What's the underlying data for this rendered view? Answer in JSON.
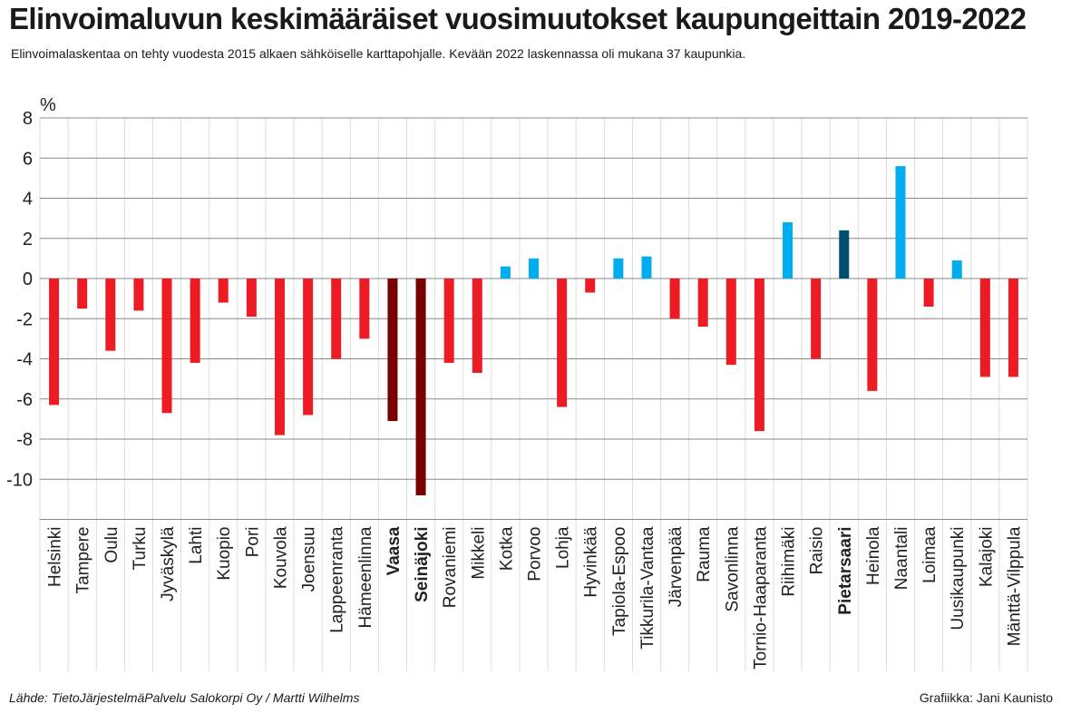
{
  "title": "Elinvoimaluvun keskimääräiset vuosimuutokset kaupungeittain 2019-2022",
  "subtitle": "Elinvoimalaskentaa on tehty vuodesta 2015 alkaen sähköiselle karttapohjalle. Kevään 2022 laskennassa oli mukana 37 kaupunkia.",
  "source": "Lähde: TietoJärjestelmäPalvelu Salokorpi Oy / Martti Wilhelms",
  "credit": "Grafiikka: Jani Kaunisto",
  "colors": {
    "negative": "#ed1c24",
    "positive": "#00aeef",
    "highlight_negative": "#7a0000",
    "highlight_positive": "#004f6e",
    "grid_major": "#888888",
    "grid_minor": "#dddddd"
  },
  "chart_data": {
    "type": "bar",
    "ylabel": "%",
    "ylim": [
      -12,
      8
    ],
    "yticks": [
      8,
      6,
      4,
      2,
      0,
      -2,
      -4,
      -6,
      -8,
      -10
    ],
    "grid": true,
    "categories": [
      "Helsinki",
      "Tampere",
      "Oulu",
      "Turku",
      "Jyväskylä",
      "Lahti",
      "Kuopio",
      "Pori",
      "Kouvola",
      "Joensuu",
      "Lappeenranta",
      "Hämeenlinna",
      "Vaasa",
      "Seinäjoki",
      "Rovaniemi",
      "Mikkeli",
      "Kotka",
      "Porvoo",
      "Lohja",
      "Hyvinkää",
      "Tapiola-Espoo",
      "Tikkurila-Vantaa",
      "Järvenpää",
      "Rauma",
      "Savonlinna",
      "Tornio-Haaparanta",
      "Riihimäki",
      "Raisio",
      "Pietarsaari",
      "Heinola",
      "Naantali",
      "Loimaa",
      "Uusikaupunki",
      "Kalajoki",
      "Mänttä-Vilppula"
    ],
    "values": [
      -6.3,
      -1.5,
      -3.6,
      -1.6,
      -6.7,
      -4.2,
      -1.2,
      -1.9,
      -7.8,
      -6.8,
      -4.0,
      -3.0,
      -7.1,
      -10.8,
      -4.2,
      -4.7,
      0.6,
      1.0,
      -6.4,
      -0.7,
      1.0,
      1.1,
      -2.0,
      -2.4,
      -4.3,
      -7.6,
      2.8,
      -4.0,
      2.4,
      -5.6,
      5.6,
      -1.4,
      0.9,
      -4.9,
      -4.9
    ],
    "highlighted": [
      "Vaasa",
      "Seinäjoki",
      "Pietarsaari"
    ]
  }
}
